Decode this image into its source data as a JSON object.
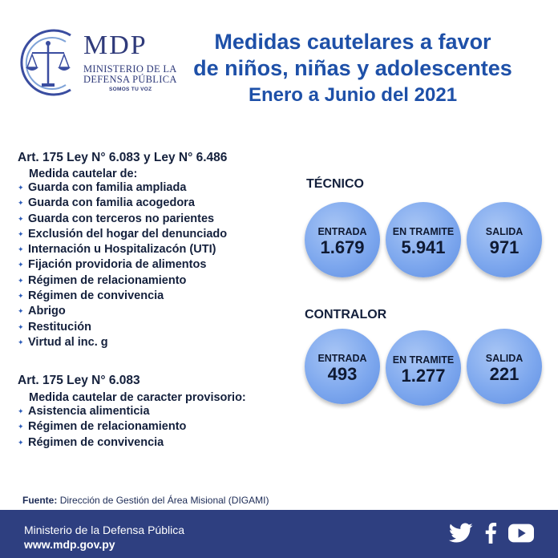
{
  "logo": {
    "acronym": "MDP",
    "line1": "MINISTERIO DE LA",
    "line2": "DEFENSA PÚBLICA",
    "slogan": "SOMOS TU VOZ"
  },
  "title": {
    "line1": "Medidas cautelares a favor",
    "line2": "de niños, niñas y adolescentes",
    "period": "Enero a Junio del 2021"
  },
  "section1": {
    "heading": "Art. 175 Ley N° 6.083 y Ley N° 6.486",
    "subheading": "Medida cautelar de:",
    "items": [
      "Guarda con familia ampliada",
      "Guarda con familia acogedora",
      "Guarda con terceros no parientes",
      "Exclusión del hogar del denunciado",
      "Internación u Hospitalizacón (UTI)",
      "Fijación providoria de alimentos",
      "Régimen de relacionamiento",
      "Régimen de convivencia",
      "Abrigo",
      "Restitución",
      "Virtud al inc. g"
    ]
  },
  "section2": {
    "heading": "Art. 175 Ley N° 6.083",
    "subheading": "Medida cautelar de caracter provisorio:",
    "items": [
      "Asistencia alimenticia",
      "Régimen de relacionamiento",
      "Régimen de convivencia"
    ]
  },
  "tecnico": {
    "title": "TÉCNICO",
    "stats": [
      {
        "label": "ENTRADA",
        "value": "1.679"
      },
      {
        "label": "EN TRAMITE",
        "value": "5.941"
      },
      {
        "label": "SALIDA",
        "value": "971"
      }
    ]
  },
  "contralor": {
    "title": "CONTRALOR",
    "stats": [
      {
        "label": "ENTRADA",
        "value": "493"
      },
      {
        "label": "EN TRAMITE",
        "value": "1.277"
      },
      {
        "label": "SALIDA",
        "value": "221"
      }
    ]
  },
  "source": {
    "label": "Fuente:",
    "text": "Dirección de Gestión del Área Misional (DIGAMI)"
  },
  "footer": {
    "name": "Ministerio de la Defensa Pública",
    "url": "www.mdp.gov.py",
    "icons": [
      "twitter-icon",
      "facebook-icon",
      "youtube-icon"
    ]
  },
  "colors": {
    "title": "#1e50a8",
    "footer_bg": "#2e3f80",
    "bubble": "#7ea8ee",
    "bullet": "#2a5ab8"
  }
}
